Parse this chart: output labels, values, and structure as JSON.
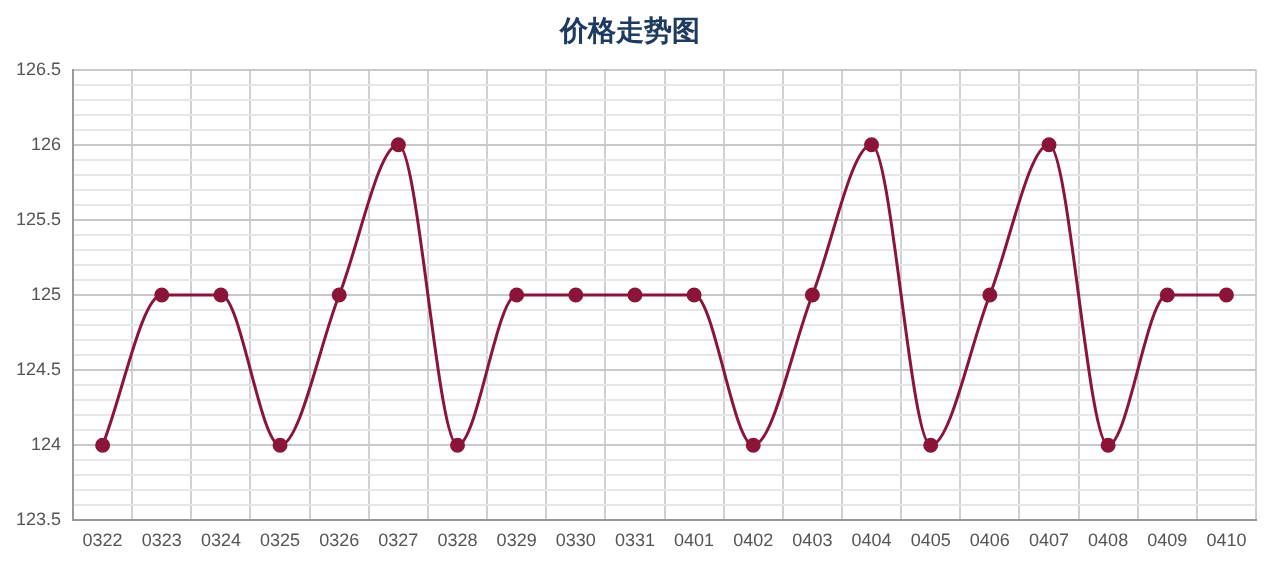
{
  "chart_data": {
    "type": "line",
    "title": "价格走势图",
    "categories": [
      "0322",
      "0323",
      "0324",
      "0325",
      "0326",
      "0327",
      "0328",
      "0329",
      "0330",
      "0331",
      "0401",
      "0402",
      "0403",
      "0404",
      "0405",
      "0406",
      "0407",
      "0408",
      "0409",
      "0410"
    ],
    "series": [
      {
        "color": "#8b1538",
        "values": [
          124,
          125,
          125,
          124,
          125,
          126,
          124,
          125,
          125,
          125,
          125,
          124,
          125,
          126,
          124,
          125,
          126,
          124,
          125,
          125
        ]
      }
    ],
    "ylim": [
      123.5,
      126.5
    ],
    "yticks": [
      123.5,
      {
        "value": 123.6,
        "label": null
      },
      {
        "value": 123.7,
        "label": null
      },
      {
        "value": 123.8,
        "label": null
      },
      {
        "value": 123.9,
        "label": null
      },
      124,
      {
        "value": 124.1,
        "label": null
      },
      {
        "value": 124.2,
        "label": null
      },
      {
        "value": 124.3,
        "label": null
      },
      {
        "value": 124.4,
        "label": null
      },
      124.5,
      {
        "value": 124.6,
        "label": null
      },
      {
        "value": 124.7,
        "label": null
      },
      {
        "value": 124.8,
        "label": null
      },
      {
        "value": 124.9,
        "label": null
      },
      125,
      {
        "value": 125.1,
        "label": null
      },
      {
        "value": 125.2,
        "label": null
      },
      {
        "value": 125.3,
        "label": null
      },
      {
        "value": 125.4,
        "label": null
      },
      125.5,
      {
        "value": 125.6,
        "label": null
      },
      {
        "value": 125.7,
        "label": null
      },
      {
        "value": 125.8,
        "label": null
      },
      {
        "value": 125.9,
        "label": null
      },
      126,
      {
        "value": 126.1,
        "label": null
      },
      {
        "value": 126.2,
        "label": null
      },
      {
        "value": 126.3,
        "label": null
      },
      {
        "value": 126.4,
        "label": null
      },
      126.5
    ],
    "grid": true,
    "legend": false,
    "marker": "circle",
    "line_style": "solid"
  }
}
